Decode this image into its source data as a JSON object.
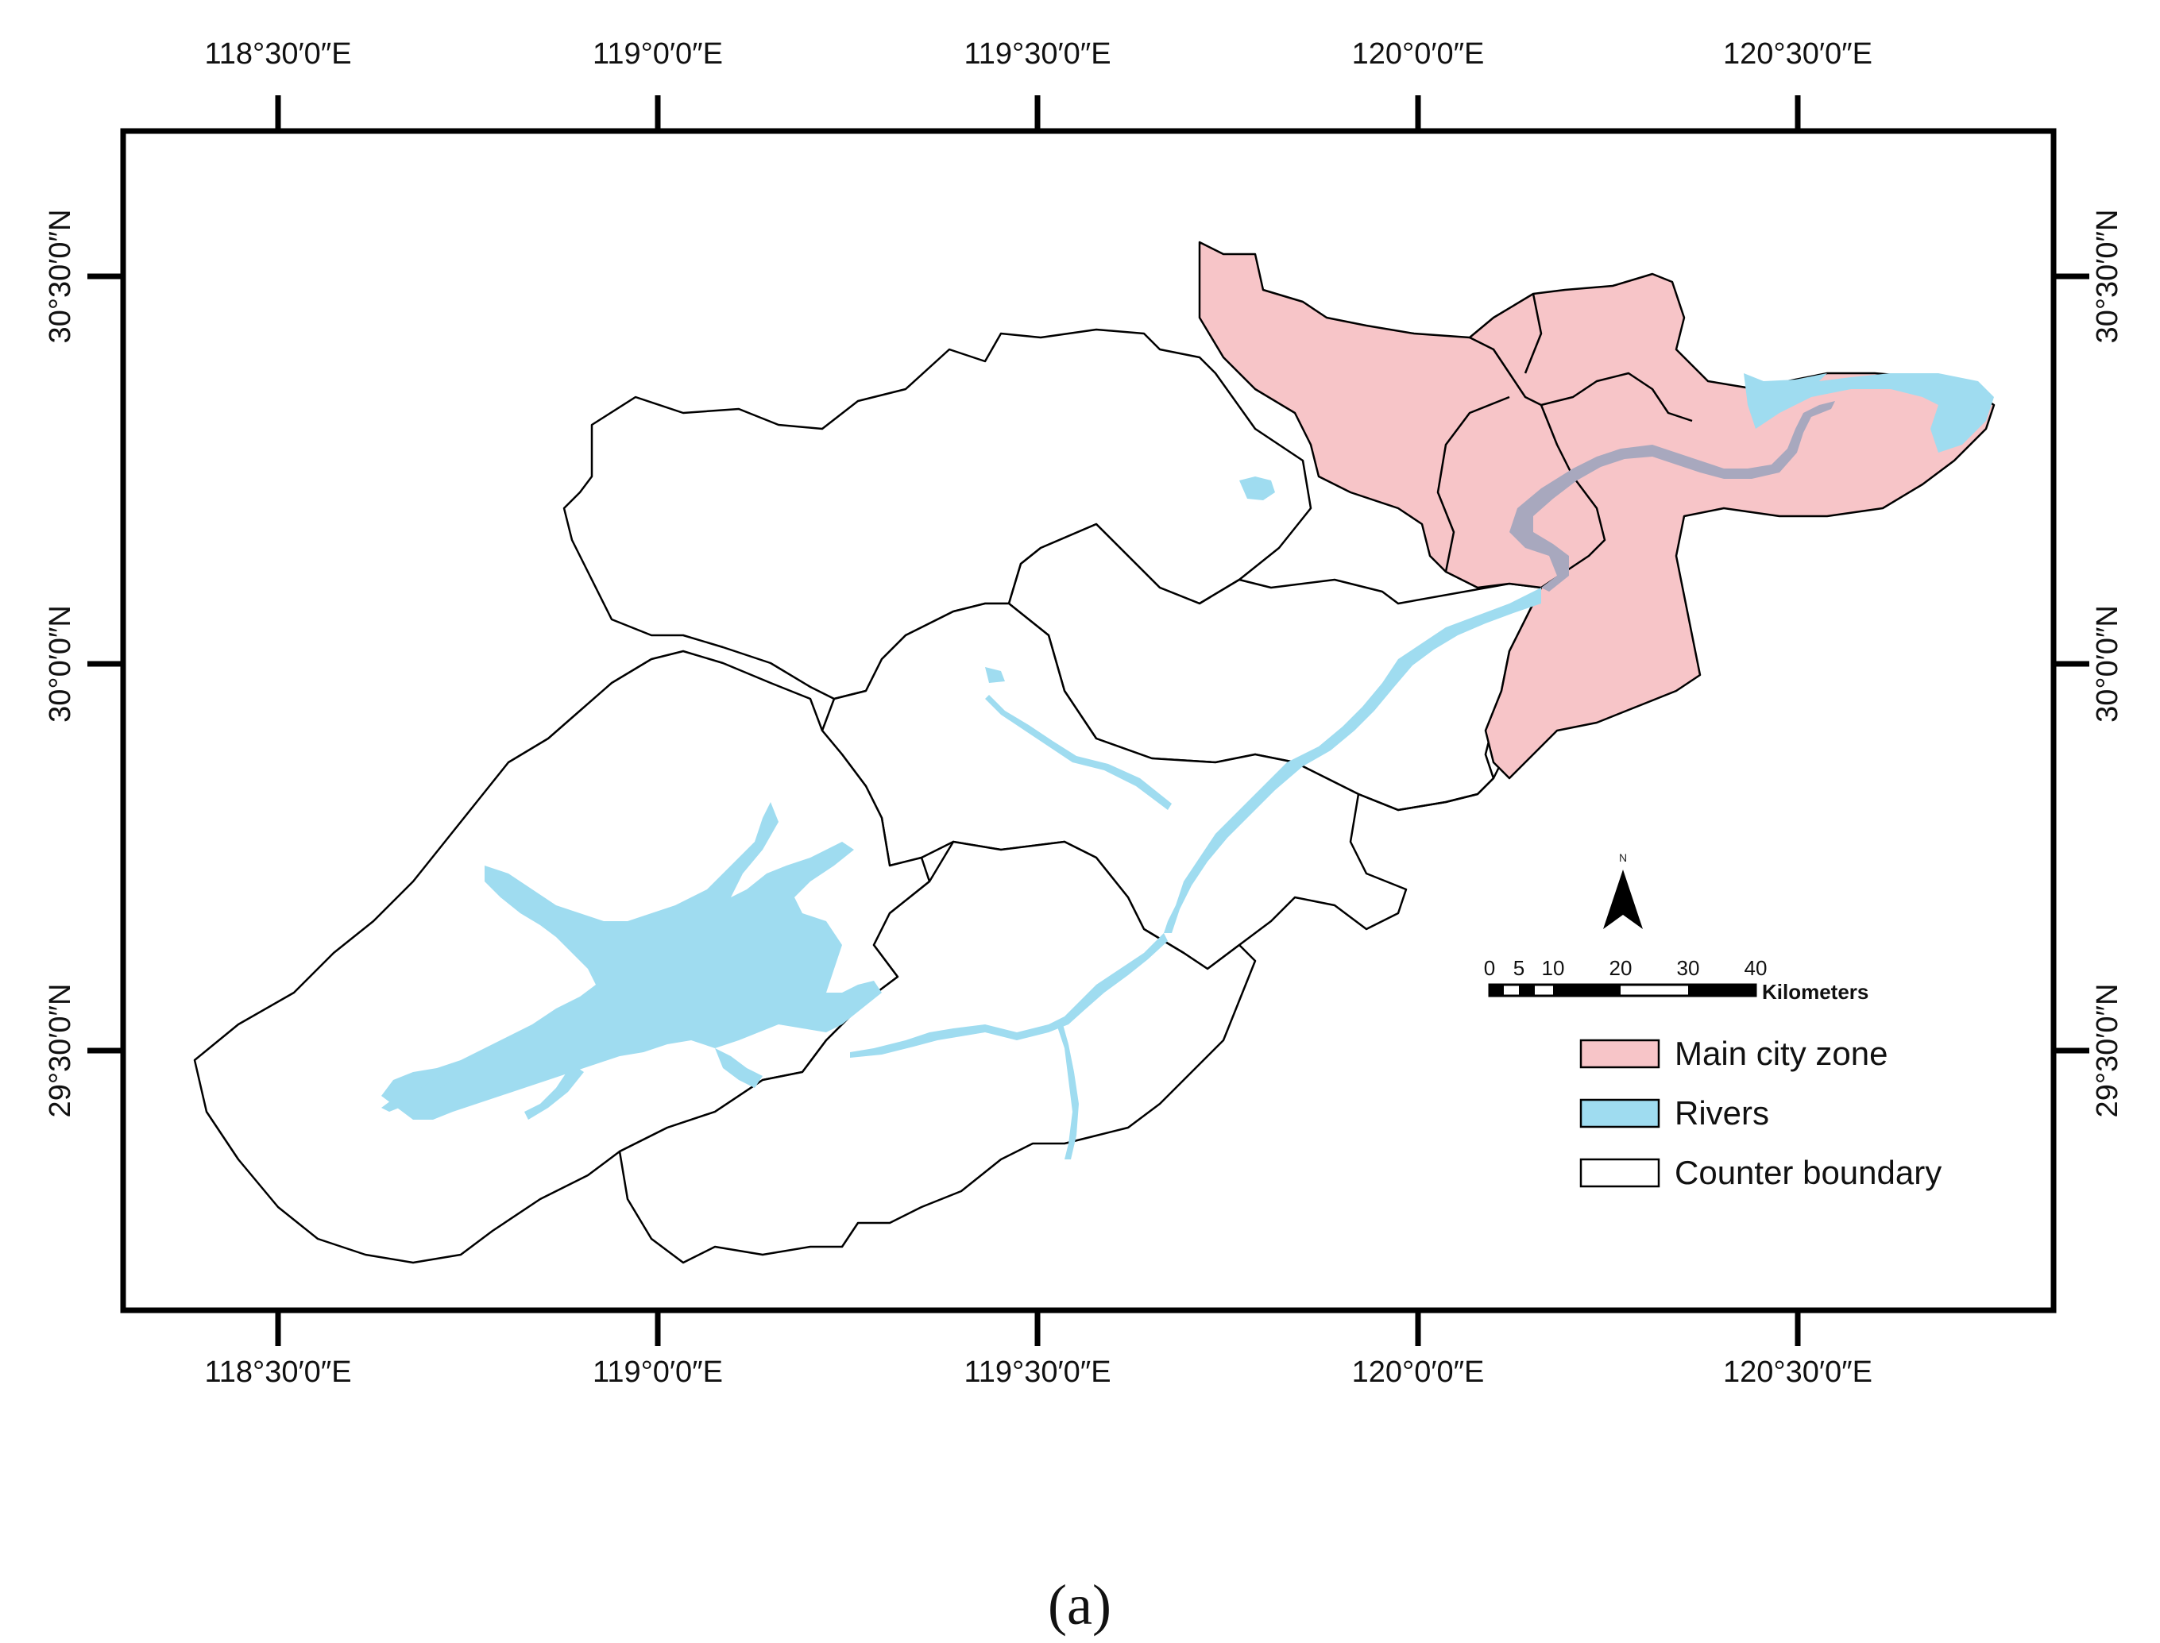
{
  "map": {
    "longitude_labels": [
      "118°30′0″E",
      "119°0′0″E",
      "119°30′0″E",
      "120°0′0″E",
      "120°30′0″E"
    ],
    "latitude_labels": [
      "30°30′0″N",
      "30°0′0″N",
      "29°30′0″N"
    ],
    "scale_bar": {
      "ticks": [
        "0",
        "5",
        "10",
        "20",
        "30",
        "40"
      ],
      "unit": "Kilometers"
    },
    "north_arrow_label": "N",
    "legend": [
      {
        "label": "Main city zone",
        "color": "#f7c5c8"
      },
      {
        "label": "Rivers",
        "color": "#9fdcf0"
      },
      {
        "label": "Counter boundary",
        "color": "#ffffff"
      }
    ],
    "colors": {
      "main_city_zone": "#f7c5c8",
      "rivers": "#9fdcf0",
      "urban_river": "#a8a8be",
      "boundary": "#000000"
    }
  },
  "caption": "(a)"
}
